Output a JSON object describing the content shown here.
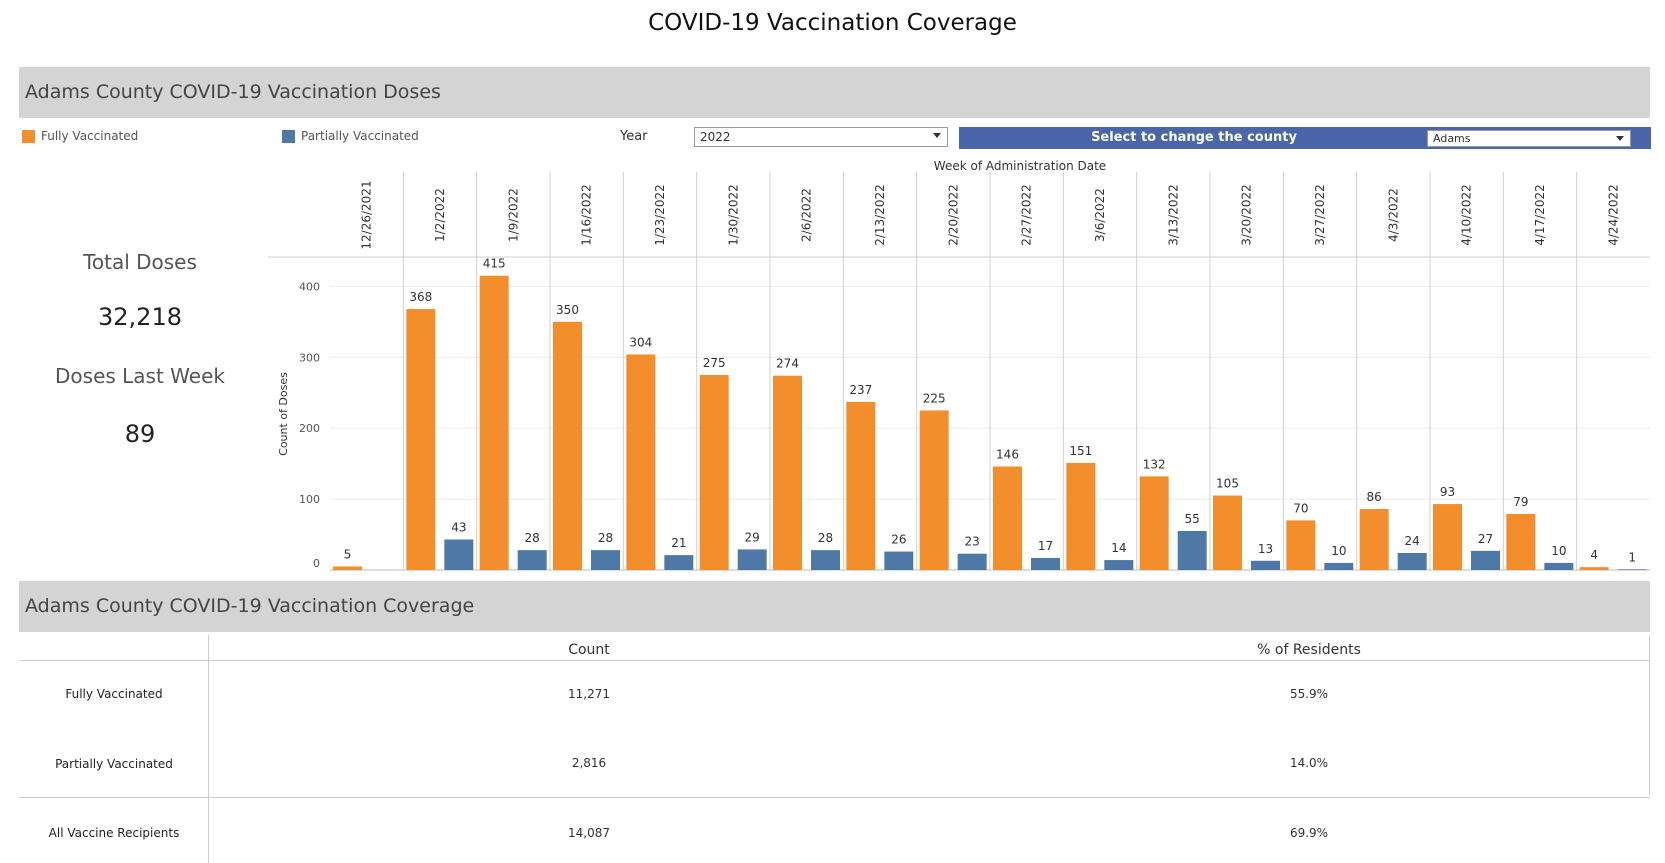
{
  "page_title": "COVID-19 Vaccination Coverage",
  "doses_section_title": "Adams County COVID-19 Vaccination Doses",
  "coverage_section_title": "Adams County COVID-19 Vaccination Coverage",
  "legend": [
    {
      "label": "Fully Vaccinated",
      "color": "#f28e2b"
    },
    {
      "label": "Partially Vaccinated",
      "color": "#4e79a7"
    }
  ],
  "filters": {
    "year_label": "Year",
    "year_value": "2022",
    "county_label": "Select to change the county",
    "county_value": "Adams"
  },
  "kpis": {
    "total_label": "Total Doses",
    "total_value": "32,218",
    "last_week_label": "Doses Last Week",
    "last_week_value": "89"
  },
  "chart_data": {
    "type": "bar",
    "title": "",
    "xlabel": "Week of Administration Date",
    "ylabel": "Count of Doses",
    "ylim": [
      0,
      440
    ],
    "yticks": [
      0,
      100,
      200,
      300,
      400
    ],
    "grid": true,
    "legend_position": "top-left",
    "categories": [
      "12/26/2021",
      "1/2/2022",
      "1/9/2022",
      "1/16/2022",
      "1/23/2022",
      "1/30/2022",
      "2/6/2022",
      "2/13/2022",
      "2/20/2022",
      "2/27/2022",
      "3/6/2022",
      "3/13/2022",
      "3/20/2022",
      "3/27/2022",
      "4/3/2022",
      "4/10/2022",
      "4/17/2022",
      "4/24/2022"
    ],
    "series": [
      {
        "name": "Fully Vaccinated",
        "color": "#f28e2b",
        "values": [
          5,
          368,
          415,
          350,
          304,
          275,
          274,
          237,
          225,
          146,
          151,
          132,
          105,
          70,
          86,
          93,
          79,
          4
        ]
      },
      {
        "name": "Partially Vaccinated",
        "color": "#4e79a7",
        "values": [
          null,
          43,
          28,
          28,
          21,
          29,
          28,
          26,
          23,
          17,
          14,
          55,
          13,
          10,
          24,
          27,
          10,
          1
        ]
      }
    ]
  },
  "coverage_table": {
    "columns": [
      "Count",
      "% of Residents"
    ],
    "rows": [
      {
        "label": "Fully Vaccinated",
        "count": "11,271",
        "percent": "55.9%"
      },
      {
        "label": "Partially Vaccinated",
        "count": "2,816",
        "percent": "14.0%"
      },
      {
        "label": "All Vaccine Recipients",
        "count": "14,087",
        "percent": "69.9%"
      }
    ]
  }
}
